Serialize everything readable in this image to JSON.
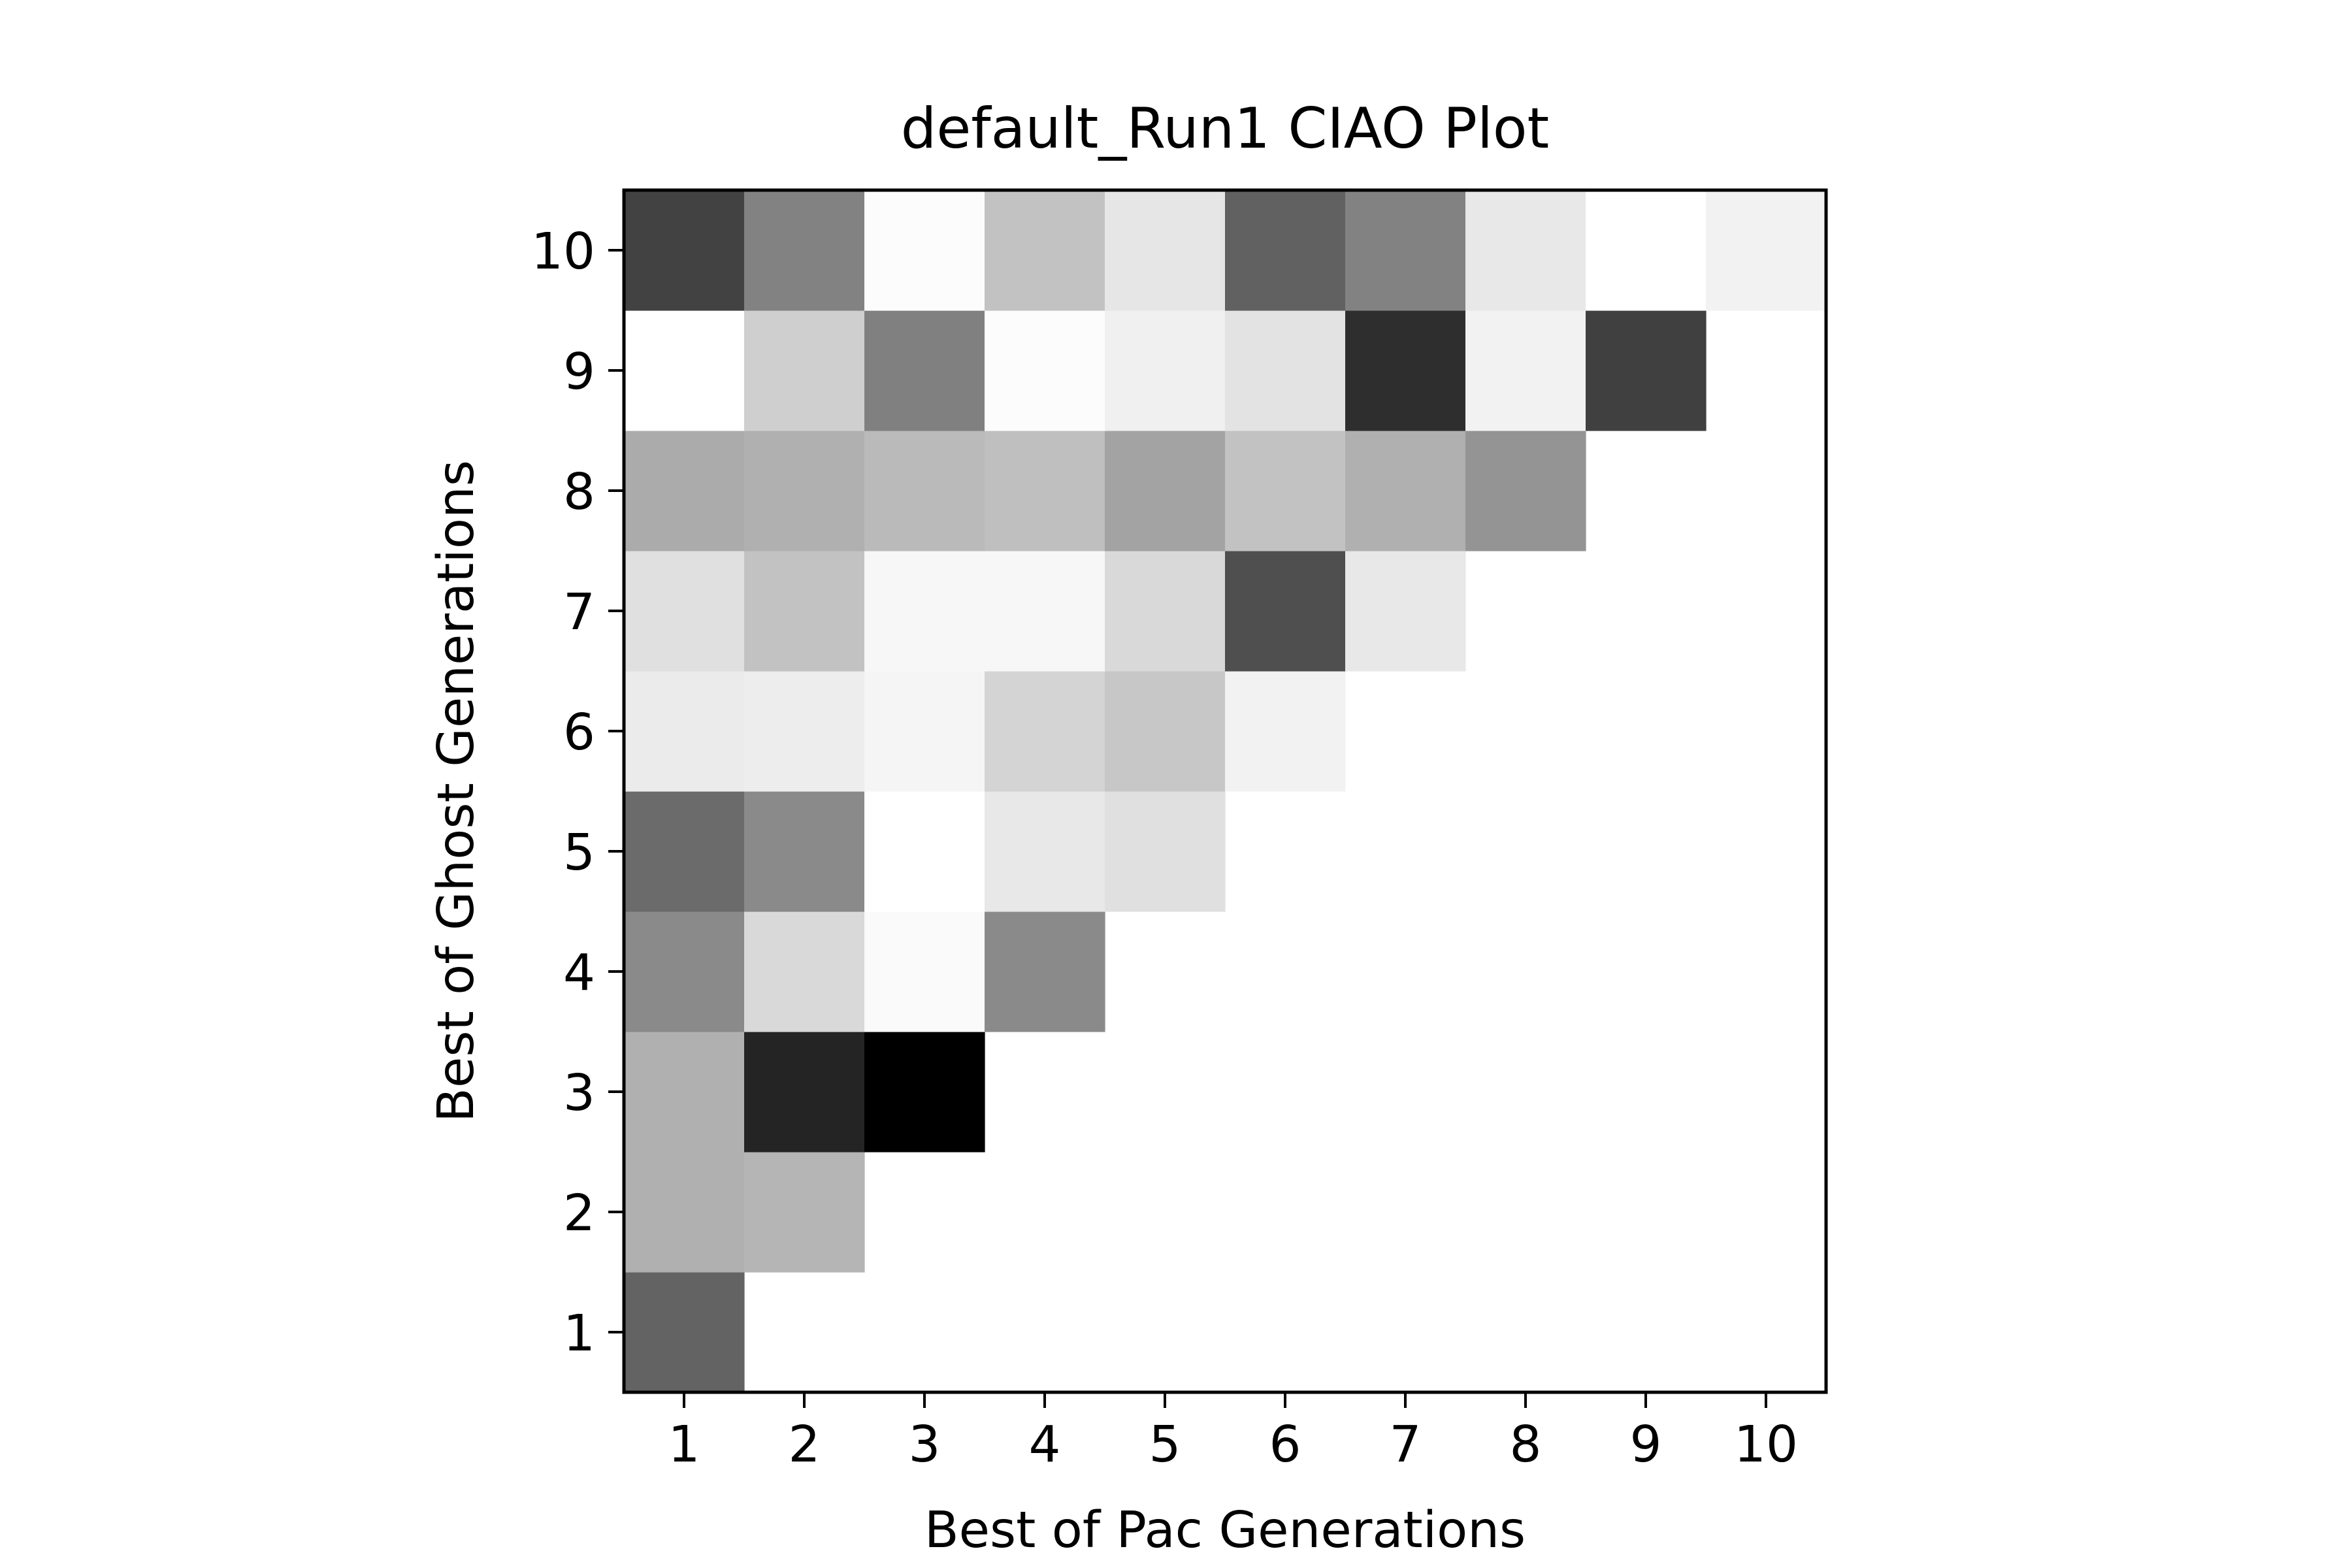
{
  "chart_data": {
    "type": "heatmap",
    "title": "default_Run1 CIAO Plot",
    "xlabel": "Best of Pac Generations",
    "ylabel": "Best of Ghost Generations",
    "x_ticks": [
      "1",
      "2",
      "3",
      "4",
      "5",
      "6",
      "7",
      "8",
      "9",
      "10"
    ],
    "y_ticks": [
      "1",
      "2",
      "3",
      "4",
      "5",
      "6",
      "7",
      "8",
      "9",
      "10"
    ],
    "colormap": "gray (darker = higher value)",
    "grid": false,
    "colorbar": false,
    "rows": [
      {
        "ghost_gen": 1,
        "intensity": [
          0.61
        ]
      },
      {
        "ghost_gen": 2,
        "intensity": [
          0.31,
          0.29
        ]
      },
      {
        "ghost_gen": 3,
        "intensity": [
          0.31,
          0.86,
          1.0
        ]
      },
      {
        "ghost_gen": 4,
        "intensity": [
          0.46,
          0.15,
          0.02,
          0.46
        ]
      },
      {
        "ghost_gen": 5,
        "intensity": [
          0.58,
          0.46,
          0.0,
          0.09,
          0.12
        ]
      },
      {
        "ghost_gen": 6,
        "intensity": [
          0.08,
          0.07,
          0.04,
          0.17,
          0.22,
          0.05
        ]
      },
      {
        "ghost_gen": 7,
        "intensity": [
          0.12,
          0.24,
          0.03,
          0.03,
          0.15,
          0.69,
          0.09
        ]
      },
      {
        "ghost_gen": 8,
        "intensity": [
          0.33,
          0.31,
          0.27,
          0.25,
          0.36,
          0.24,
          0.31,
          0.42
        ]
      },
      {
        "ghost_gen": 9,
        "intensity": [
          0.0,
          0.19,
          0.5,
          0.01,
          0.06,
          0.11,
          0.82,
          0.05,
          0.75
        ]
      },
      {
        "ghost_gen": 10,
        "intensity": [
          0.74,
          0.49,
          0.01,
          0.24,
          0.1,
          0.62,
          0.49,
          0.09,
          0.0,
          0.05
        ]
      }
    ]
  }
}
